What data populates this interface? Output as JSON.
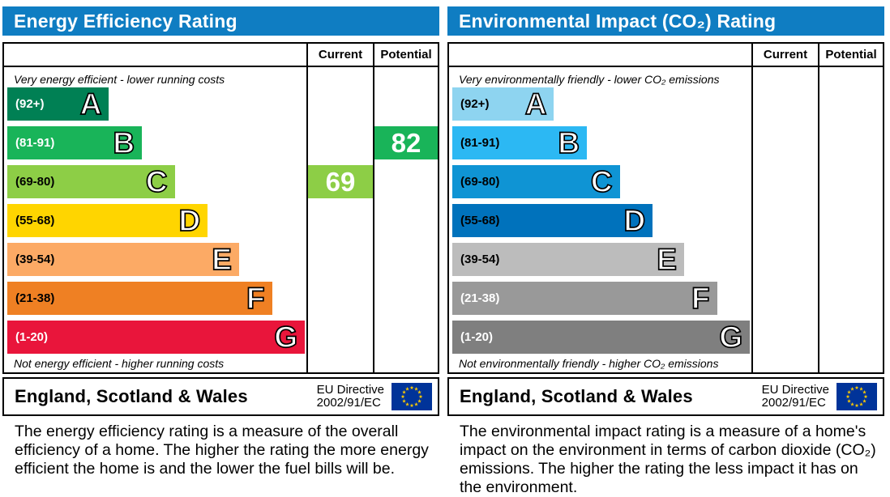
{
  "header_color": "#0f7dc2",
  "eu_flag_colors": {
    "field": "#003399",
    "stars": "#ffcc00"
  },
  "chart_data": [
    {
      "type": "bar",
      "orientation": "horizontal",
      "title": "Energy Efficiency Rating",
      "column_headers": [
        "Current",
        "Potential"
      ],
      "top_caption": "Very energy efficient - lower running costs",
      "bottom_caption": "Not energy efficient - higher running costs",
      "bands": [
        {
          "letter": "A",
          "range_label": "(92+)",
          "min": 92,
          "max": 100,
          "width_pct": 34,
          "color": "#008054",
          "text_color": "#ffffff"
        },
        {
          "letter": "B",
          "range_label": "(81-91)",
          "min": 81,
          "max": 91,
          "width_pct": 45,
          "color": "#19b459",
          "text_color": "#ffffff"
        },
        {
          "letter": "C",
          "range_label": "(69-80)",
          "min": 69,
          "max": 80,
          "width_pct": 56,
          "color": "#8dce46",
          "text_color": "#000000"
        },
        {
          "letter": "D",
          "range_label": "(55-68)",
          "min": 55,
          "max": 68,
          "width_pct": 67,
          "color": "#ffd500",
          "text_color": "#000000"
        },
        {
          "letter": "E",
          "range_label": "(39-54)",
          "min": 39,
          "max": 54,
          "width_pct": 77.5,
          "color": "#fcaa65",
          "text_color": "#000000"
        },
        {
          "letter": "F",
          "range_label": "(21-38)",
          "min": 21,
          "max": 38,
          "width_pct": 88.5,
          "color": "#ef8023",
          "text_color": "#000000"
        },
        {
          "letter": "G",
          "range_label": "(1-20)",
          "min": 1,
          "max": 20,
          "width_pct": 99.5,
          "color": "#e9153b",
          "text_color": "#ffffff"
        }
      ],
      "current": {
        "value": 69,
        "band": "C",
        "color": "#8dce46"
      },
      "potential": {
        "value": 82,
        "band": "B",
        "color": "#19b459"
      },
      "footer": {
        "region": "England, Scotland & Wales",
        "directive_line1": "EU Directive",
        "directive_line2": "2002/91/EC"
      },
      "description": "The energy efficiency rating is a measure of the overall efficiency of a home. The higher the rating the more energy efficient the home is and the lower the fuel bills will be."
    },
    {
      "type": "bar",
      "orientation": "horizontal",
      "title": "Environmental Impact (CO₂) Rating",
      "column_headers": [
        "Current",
        "Potential"
      ],
      "top_caption": "Very environmentally friendly - lower CO₂ emissions",
      "bottom_caption": "Not environmentally friendly - higher CO₂ emissions",
      "bands": [
        {
          "letter": "A",
          "range_label": "(92+)",
          "min": 92,
          "max": 100,
          "width_pct": 34,
          "color": "#8ed4f0",
          "text_color": "#000000"
        },
        {
          "letter": "B",
          "range_label": "(81-91)",
          "min": 81,
          "max": 91,
          "width_pct": 45,
          "color": "#2cb8f3",
          "text_color": "#000000"
        },
        {
          "letter": "C",
          "range_label": "(69-80)",
          "min": 69,
          "max": 80,
          "width_pct": 56,
          "color": "#0f94d4",
          "text_color": "#000000"
        },
        {
          "letter": "D",
          "range_label": "(55-68)",
          "min": 55,
          "max": 68,
          "width_pct": 67,
          "color": "#0072bc",
          "text_color": "#000000"
        },
        {
          "letter": "E",
          "range_label": "(39-54)",
          "min": 39,
          "max": 54,
          "width_pct": 77.5,
          "color": "#bcbcbc",
          "text_color": "#000000"
        },
        {
          "letter": "F",
          "range_label": "(21-38)",
          "min": 21,
          "max": 38,
          "width_pct": 88.5,
          "color": "#999999",
          "text_color": "#ffffff"
        },
        {
          "letter": "G",
          "range_label": "(1-20)",
          "min": 1,
          "max": 20,
          "width_pct": 99.5,
          "color": "#7f7f7f",
          "text_color": "#ffffff"
        }
      ],
      "current": null,
      "potential": null,
      "footer": {
        "region": "England, Scotland & Wales",
        "directive_line1": "EU Directive",
        "directive_line2": "2002/91/EC"
      },
      "description": "The environmental impact rating is a measure of a home's impact on the environment in terms of carbon dioxide (CO₂) emissions. The higher the rating the less impact it has on the environment."
    }
  ]
}
